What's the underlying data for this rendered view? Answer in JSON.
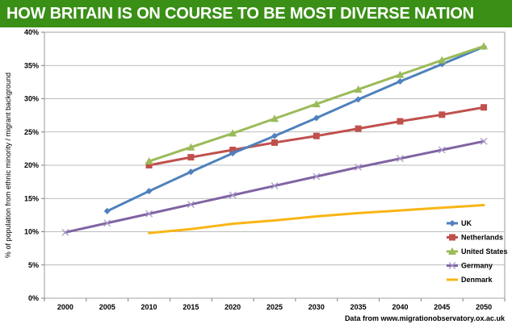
{
  "title": "HOW BRITAIN IS ON COURSE TO BE MOST DIVERSE NATION",
  "source": "Data from www.migrationobservatory.ox.ac.uk",
  "chart_data": {
    "type": "line",
    "ylabel": "% of population from ethnic minority / migrant background",
    "xlabel": "",
    "x": [
      2000,
      2005,
      2010,
      2015,
      2020,
      2025,
      2030,
      2035,
      2040,
      2045,
      2050
    ],
    "xticks": [
      "2000",
      "2005",
      "2010",
      "2015",
      "2020",
      "2025",
      "2030",
      "2035",
      "2040",
      "2045",
      "2050"
    ],
    "yticks": [
      "0%",
      "5%",
      "10%",
      "15%",
      "20%",
      "25%",
      "30%",
      "35%",
      "40%"
    ],
    "ylim": [
      0,
      40
    ],
    "grid": true,
    "legend_position": "right",
    "series": [
      {
        "name": "UK",
        "color": "#4f81bd",
        "marker": "diamond",
        "values": [
          null,
          13.1,
          16.1,
          19.0,
          21.8,
          24.4,
          27.1,
          29.9,
          32.6,
          35.2,
          37.8
        ]
      },
      {
        "name": "Netherlands",
        "color": "#c0504d",
        "marker": "square",
        "values": [
          null,
          null,
          20.0,
          21.2,
          22.3,
          23.4,
          24.4,
          25.5,
          26.6,
          27.6,
          28.7
        ]
      },
      {
        "name": "United States",
        "color": "#9bbb59",
        "marker": "triangle",
        "values": [
          null,
          null,
          20.6,
          22.7,
          24.8,
          27.0,
          29.2,
          31.4,
          33.6,
          35.8,
          37.9
        ]
      },
      {
        "name": "Germany",
        "color": "#8064a2",
        "marker": "x",
        "values": [
          9.9,
          11.3,
          12.7,
          14.1,
          15.5,
          16.9,
          18.3,
          19.7,
          21.0,
          22.3,
          23.6
        ]
      },
      {
        "name": "Denmark",
        "color": "#f9b515",
        "marker": "none",
        "values": [
          null,
          null,
          9.8,
          10.4,
          11.2,
          11.7,
          12.3,
          12.8,
          13.2,
          13.6,
          14.0
        ]
      }
    ]
  }
}
